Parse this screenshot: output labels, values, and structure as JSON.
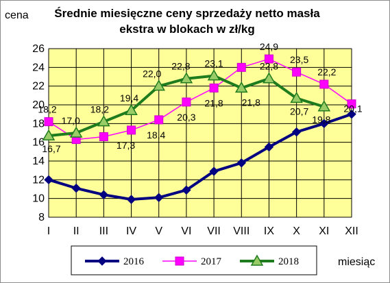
{
  "chart_data": {
    "type": "line",
    "title_line1": "Średnie miesięczne ceny sprzedaży netto masła",
    "title_line2": "ekstra w blokach w zł/kg",
    "ylabel": "cena",
    "xlabel": "miesiąc",
    "ylim": [
      8,
      26
    ],
    "yticks": [
      "8",
      "10",
      "12",
      "14",
      "16",
      "18",
      "20",
      "22",
      "24",
      "26"
    ],
    "categories": [
      "I",
      "II",
      "III",
      "IV",
      "V",
      "VI",
      "VII",
      "VIII",
      "IX",
      "X",
      "XI",
      "XII"
    ],
    "grid": true,
    "legend_position": "bottom",
    "plot_background": "#ffff99",
    "series": [
      {
        "name": "2016",
        "color": "#000080",
        "marker": "diamond",
        "values": [
          12.0,
          11.1,
          10.4,
          9.9,
          10.1,
          10.9,
          12.9,
          13.8,
          15.5,
          17.1,
          18.0,
          19.0
        ],
        "labels": [
          "",
          "",
          "",
          "",
          "",
          "",
          "",
          "",
          "",
          "",
          "",
          ""
        ]
      },
      {
        "name": "2017",
        "color": "#ff00ff",
        "marker": "square",
        "values": [
          18.2,
          16.3,
          16.6,
          17.3,
          18.4,
          20.3,
          21.8,
          24.0,
          24.9,
          23.5,
          22.2,
          20.1
        ],
        "labels": [
          "18,2",
          "",
          "",
          "17,3",
          "18,4",
          "20,3",
          "21,8",
          "",
          "24,9",
          "23,5",
          "22,2",
          "20,1"
        ]
      },
      {
        "name": "2018",
        "color": "#1e7b1e",
        "marker": "triangle",
        "values": [
          16.7,
          17.0,
          18.2,
          19.4,
          22.0,
          22.8,
          23.1,
          21.8,
          22.8,
          20.7,
          19.8,
          null
        ],
        "labels": [
          "16,7",
          "17,0",
          "18,2",
          "19,4",
          "22,0",
          "22,8",
          "23,1",
          "21,8",
          "22,8",
          "20,7",
          "19,8",
          ""
        ]
      }
    ]
  }
}
